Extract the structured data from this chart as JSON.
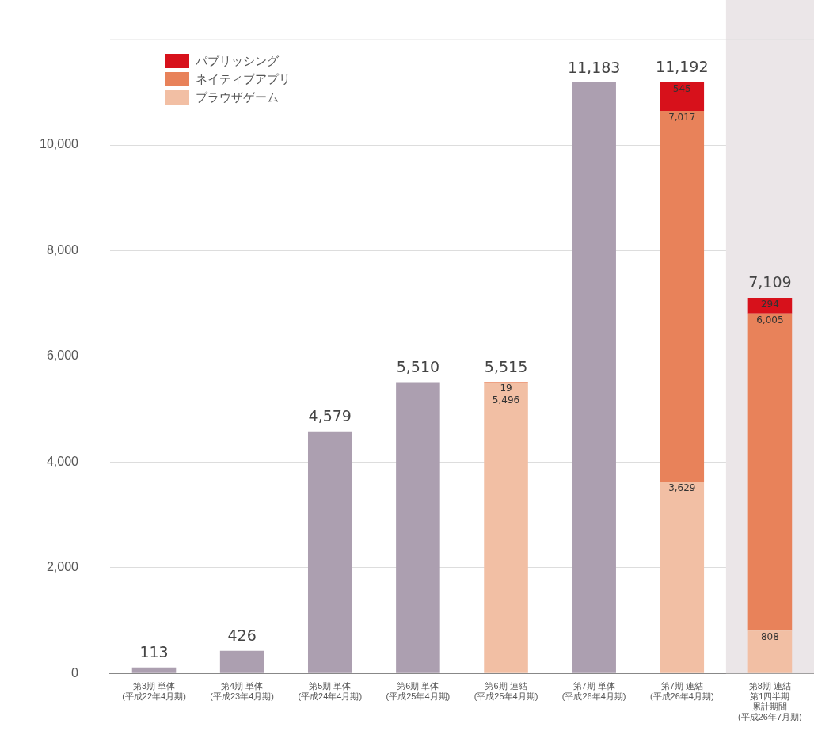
{
  "chart_data": {
    "type": "bar",
    "stacked": true,
    "categories": [
      "第3期 単体(平成22年4月期)",
      "第4期 単体(平成23年4月期)",
      "第5期 単体(平成24年4月期)",
      "第6期 単体(平成25年4月期)",
      "第6期 連結(平成25年4月期)",
      "第7期 単体(平成26年4月期)",
      "第7期 連結(平成26年4月期)",
      "第8期 連結第1四半期累計期間(平成26年7月期)"
    ],
    "series": [
      {
        "color": "#ac9fb0",
        "values": [
          113,
          426,
          4579,
          5510,
          null,
          11183,
          null,
          null
        ]
      },
      {
        "name": "ブラウザゲーム",
        "color": "#f2bfa4",
        "values": [
          null,
          null,
          null,
          null,
          5496,
          null,
          3629,
          808
        ],
        "value_labels": [
          null,
          null,
          null,
          null,
          "5,496",
          null,
          "3,629",
          "808"
        ]
      },
      {
        "name": "ネイティブアプリ",
        "color": "#e8825a",
        "values": [
          null,
          null,
          null,
          null,
          19,
          null,
          7017,
          6005
        ],
        "value_labels": [
          null,
          null,
          null,
          null,
          "19",
          null,
          "7,017",
          "6,005"
        ]
      },
      {
        "name": "パブリッシング",
        "color": "#d7111b",
        "values": [
          null,
          null,
          null,
          null,
          null,
          null,
          545,
          294
        ],
        "value_labels": [
          null,
          null,
          null,
          null,
          null,
          null,
          "545",
          "294"
        ]
      }
    ],
    "totals": [
      "113",
      "426",
      "4,579",
      "5,510",
      "5,515",
      "11,183",
      "11,192",
      "7,109"
    ],
    "ylim": [
      0,
      12000
    ],
    "yticks": [
      {
        "value": 0,
        "label": "0"
      },
      {
        "value": 2000,
        "label": "2,000"
      },
      {
        "value": 4000,
        "label": "4,000"
      },
      {
        "value": 6000,
        "label": "6,000"
      },
      {
        "value": 8000,
        "label": "8,000"
      },
      {
        "value": 10000,
        "label": "10,000"
      }
    ],
    "bands": [
      {
        "axis": "x",
        "from": "第8期 連結第1四半期累計期間(平成26年7月期)",
        "to": "第8期 連結第1四半期累計期間(平成26年7月期)",
        "color": "#ebe6e8"
      }
    ],
    "grid": "y",
    "legend": "top left"
  }
}
